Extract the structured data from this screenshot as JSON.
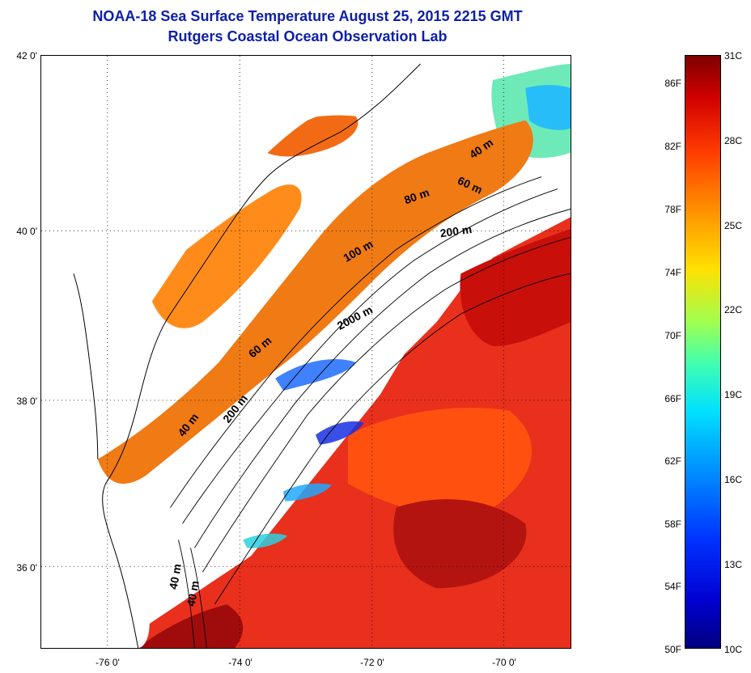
{
  "title": {
    "line1": "NOAA-18 Sea Surface Temperature August 25, 2015 2215 GMT",
    "line2": "Rutgers Coastal Ocean Observation Lab"
  },
  "map": {
    "latitude_labels": [
      "42 0'",
      "40 0'",
      "38 0'",
      "36 0'"
    ],
    "longitude_labels": [
      "-76 0'",
      "-74 0'",
      "-72 0'",
      "-70 0'"
    ],
    "depth_contour_labels": [
      "40 m",
      "60 m",
      "80 m",
      "200 m",
      "100 m",
      "2000 m",
      "60 m",
      "200 m",
      "40 m",
      "40 m",
      "40 m"
    ]
  },
  "colorbar": {
    "fahrenheit_labels": [
      "86F",
      "82F",
      "78F",
      "74F",
      "70F",
      "66F",
      "62F",
      "58F",
      "54F",
      "50F"
    ],
    "celsius_labels": [
      "31C",
      "28C",
      "25C",
      "22C",
      "19C",
      "16C",
      "13C",
      "10C"
    ],
    "min_celsius": 10,
    "max_celsius": 31
  }
}
